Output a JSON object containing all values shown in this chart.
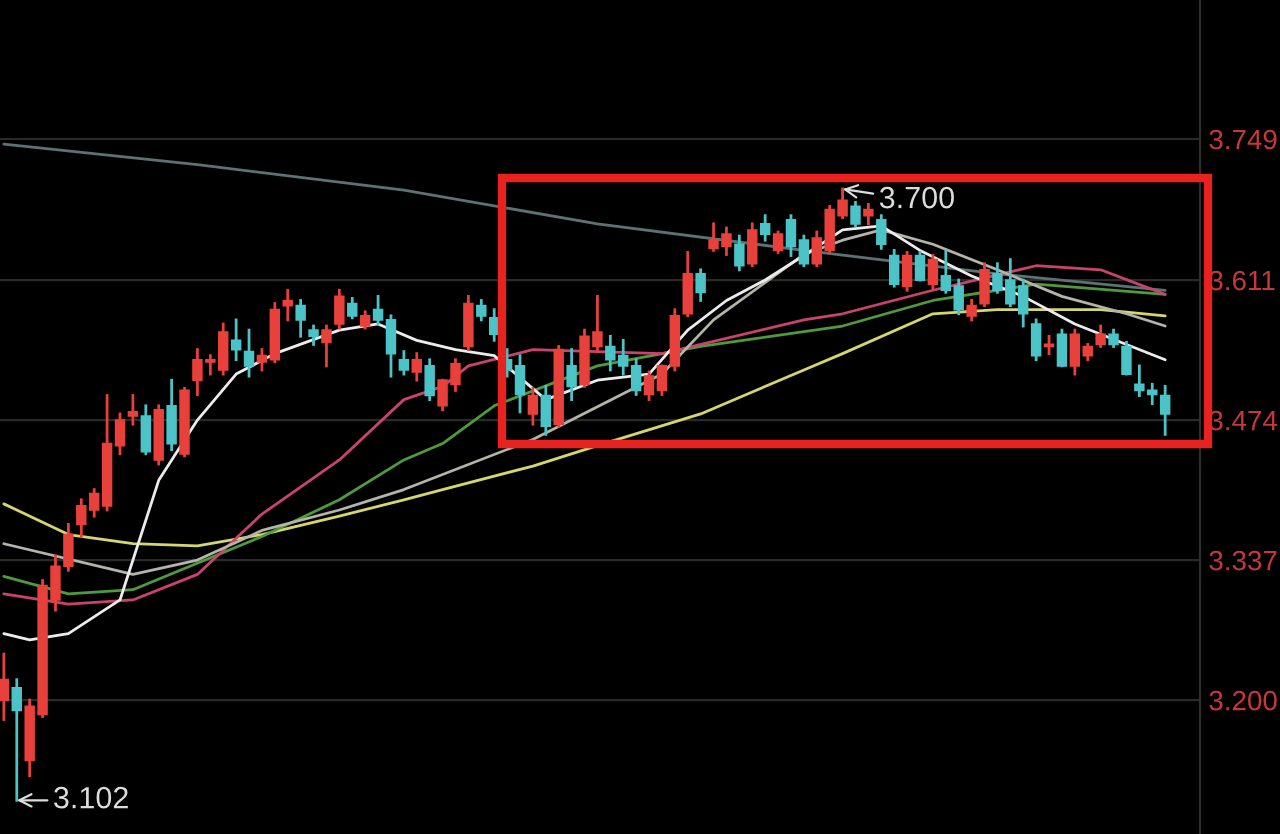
{
  "chart_data": {
    "type": "candlestick",
    "categories": [
      null,
      null,
      null,
      null,
      null,
      null,
      null,
      null,
      null,
      null,
      null,
      null,
      null,
      null,
      null,
      null,
      null,
      null,
      null,
      null,
      null,
      null,
      null,
      null,
      null,
      null,
      null,
      null,
      null,
      null,
      null,
      null,
      null,
      null,
      null,
      null,
      null,
      null,
      null,
      null,
      null,
      null,
      null,
      null,
      null,
      null,
      null,
      null,
      null,
      null,
      null,
      null,
      null,
      null,
      null,
      null,
      null,
      null,
      null,
      null,
      null,
      null,
      null,
      null,
      null,
      null,
      null,
      null,
      null,
      null,
      null,
      null,
      null,
      null,
      null,
      null,
      null,
      null,
      null,
      null,
      null,
      null,
      null,
      null,
      null,
      null,
      null,
      null,
      null,
      null,
      null
    ],
    "ohlc": [
      [
        3.2,
        3.245,
        3.181,
        3.22
      ],
      [
        3.212,
        3.22,
        3.102,
        3.19
      ],
      [
        3.141,
        3.2,
        3.126,
        3.194
      ],
      [
        3.186,
        3.317,
        3.184,
        3.312
      ],
      [
        3.298,
        3.341,
        3.288,
        3.331
      ],
      [
        3.331,
        3.372,
        3.327,
        3.362
      ],
      [
        3.372,
        3.396,
        3.36,
        3.39
      ],
      [
        3.386,
        3.406,
        3.38,
        3.402
      ],
      [
        3.39,
        3.498,
        3.386,
        3.451
      ],
      [
        3.449,
        3.48,
        3.441,
        3.474
      ],
      [
        3.478,
        3.498,
        3.47,
        3.482
      ],
      [
        3.478,
        3.488,
        3.441,
        3.443
      ],
      [
        3.435,
        3.488,
        3.431,
        3.484
      ],
      [
        3.488,
        3.513,
        3.445,
        3.451
      ],
      [
        3.441,
        3.505,
        3.439,
        3.503
      ],
      [
        3.513,
        3.543,
        3.499,
        3.533
      ],
      [
        3.531,
        3.537,
        3.519,
        3.533
      ],
      [
        3.523,
        3.568,
        3.519,
        3.56
      ],
      [
        3.552,
        3.572,
        3.533,
        3.543
      ],
      [
        3.541,
        3.562,
        3.517,
        3.527
      ],
      [
        3.531,
        3.543,
        3.523,
        3.537
      ],
      [
        3.533,
        3.588,
        3.531,
        3.582
      ],
      [
        3.586,
        3.601,
        3.572,
        3.591
      ],
      [
        3.586,
        3.591,
        3.556,
        3.572
      ],
      [
        3.562,
        3.566,
        3.548,
        3.556
      ],
      [
        3.55,
        3.566,
        3.527,
        3.562
      ],
      [
        3.568,
        3.601,
        3.564,
        3.595
      ],
      [
        3.588,
        3.593,
        3.574,
        3.576
      ],
      [
        3.566,
        3.58,
        3.564,
        3.576
      ],
      [
        3.582,
        3.595,
        3.568,
        3.572
      ],
      [
        3.572,
        3.576,
        3.517,
        3.539
      ],
      [
        3.533,
        3.541,
        3.519,
        3.523
      ],
      [
        3.521,
        3.539,
        3.513,
        3.533
      ],
      [
        3.527,
        3.533,
        3.494,
        3.498
      ],
      [
        3.488,
        3.513,
        3.484,
        3.513
      ],
      [
        3.509,
        3.533,
        3.503,
        3.529
      ],
      [
        3.546,
        3.595,
        3.543,
        3.588
      ],
      [
        3.586,
        3.591,
        3.572,
        3.576
      ],
      [
        3.574,
        3.582,
        3.552,
        3.558
      ],
      [
        3.533,
        3.543,
        3.517,
        3.523
      ],
      [
        3.527,
        3.537,
        3.482,
        3.499
      ],
      [
        3.48,
        3.505,
        3.47,
        3.498
      ],
      [
        3.498,
        3.507,
        3.46,
        3.468
      ],
      [
        3.47,
        3.546,
        3.468,
        3.543
      ],
      [
        3.527,
        3.543,
        3.494,
        3.507
      ],
      [
        3.509,
        3.562,
        3.507,
        3.556
      ],
      [
        3.546,
        3.595,
        3.543,
        3.56
      ],
      [
        3.546,
        3.556,
        3.523,
        3.533
      ],
      [
        3.537,
        3.552,
        3.519,
        3.527
      ],
      [
        3.527,
        3.533,
        3.499,
        3.503
      ],
      [
        3.499,
        3.521,
        3.494,
        3.517
      ],
      [
        3.503,
        3.527,
        3.499,
        3.527
      ],
      [
        3.527,
        3.582,
        3.523,
        3.576
      ],
      [
        3.578,
        3.638,
        3.576,
        3.617
      ],
      [
        3.617,
        3.621,
        3.591,
        3.599
      ],
      [
        3.642,
        3.666,
        3.64,
        3.65
      ],
      [
        3.644,
        3.662,
        3.636,
        3.656
      ],
      [
        3.646,
        3.654,
        3.621,
        3.625
      ],
      [
        3.627,
        3.666,
        3.625,
        3.66
      ],
      [
        3.666,
        3.674,
        3.65,
        3.656
      ],
      [
        3.64,
        3.658,
        3.638,
        3.656
      ],
      [
        3.67,
        3.674,
        3.635,
        3.644
      ],
      [
        3.65,
        3.654,
        3.625,
        3.627
      ],
      [
        3.627,
        3.658,
        3.625,
        3.652
      ],
      [
        3.64,
        3.683,
        3.638,
        3.68
      ],
      [
        3.674,
        3.7,
        3.672,
        3.689
      ],
      [
        3.683,
        3.687,
        3.664,
        3.666
      ],
      [
        3.674,
        3.685,
        3.666,
        3.68
      ],
      [
        3.67,
        3.674,
        3.642,
        3.646
      ],
      [
        3.635,
        3.64,
        3.605,
        3.607
      ],
      [
        3.605,
        3.638,
        3.601,
        3.635
      ],
      [
        3.635,
        3.638,
        3.611,
        3.611
      ],
      [
        3.607,
        3.635,
        3.603,
        3.631
      ],
      [
        3.615,
        3.64,
        3.599,
        3.601
      ],
      [
        3.605,
        3.611,
        3.578,
        3.582
      ],
      [
        3.576,
        3.591,
        3.572,
        3.586
      ],
      [
        3.588,
        3.627,
        3.586,
        3.621
      ],
      [
        3.617,
        3.627,
        3.599,
        3.601
      ],
      [
        3.611,
        3.631,
        3.586,
        3.588
      ],
      [
        3.605,
        3.611,
        3.566,
        3.578
      ],
      [
        3.568,
        3.572,
        3.533,
        3.537
      ],
      [
        3.546,
        3.556,
        3.539,
        3.548
      ],
      [
        3.558,
        3.562,
        3.527,
        3.527
      ],
      [
        3.527,
        3.562,
        3.519,
        3.558
      ],
      [
        3.537,
        3.548,
        3.533,
        3.546
      ],
      [
        3.548,
        3.566,
        3.546,
        3.558
      ],
      [
        3.558,
        3.562,
        3.546,
        3.548
      ],
      [
        3.546,
        3.55,
        3.519,
        3.519
      ],
      [
        3.509,
        3.527,
        3.498,
        3.503
      ],
      [
        3.503,
        3.509,
        3.49,
        3.499
      ],
      [
        3.498,
        3.507,
        3.46,
        3.48
      ]
    ],
    "colors": [
      "#e8413c",
      "#4cc3c6",
      "#e8413c",
      "#e8413c",
      "#e8413c",
      "#e8413c",
      "#e8413c",
      "#e8413c",
      "#e8413c",
      "#e8413c",
      "#e8413c",
      "#4cc3c6",
      "#e8413c",
      "#4cc3c6",
      "#e8413c",
      "#e8413c",
      "#e8413c",
      "#e8413c",
      "#4cc3c6",
      "#4cc3c6",
      "#e8413c",
      "#e8413c",
      "#e8413c",
      "#4cc3c6",
      "#4cc3c6",
      "#e8413c",
      "#e8413c",
      "#4cc3c6",
      "#e8413c",
      "#4cc3c6",
      "#4cc3c6",
      "#4cc3c6",
      "#e8413c",
      "#4cc3c6",
      "#e8413c",
      "#e8413c",
      "#e8413c",
      "#4cc3c6",
      "#4cc3c6",
      "#4cc3c6",
      "#4cc3c6",
      "#e8413c",
      "#4cc3c6",
      "#e8413c",
      "#4cc3c6",
      "#e8413c",
      "#e8413c",
      "#4cc3c6",
      "#4cc3c6",
      "#4cc3c6",
      "#e8413c",
      "#e8413c",
      "#e8413c",
      "#e8413c",
      "#4cc3c6",
      "#e8413c",
      "#e8413c",
      "#4cc3c6",
      "#e8413c",
      "#4cc3c6",
      "#e8413c",
      "#4cc3c6",
      "#4cc3c6",
      "#e8413c",
      "#e8413c",
      "#e8413c",
      "#4cc3c6",
      "#e8413c",
      "#4cc3c6",
      "#4cc3c6",
      "#e8413c",
      "#4cc3c6",
      "#e8413c",
      "#4cc3c6",
      "#4cc3c6",
      "#e8413c",
      "#e8413c",
      "#4cc3c6",
      "#4cc3c6",
      "#4cc3c6",
      "#4cc3c6",
      "#e8413c",
      "#4cc3c6",
      "#e8413c",
      "#e8413c",
      "#e8413c",
      "#4cc3c6",
      "#4cc3c6",
      "#4cc3c6",
      "#4cc3c6",
      "#4cc3c6"
    ],
    "series": [
      {
        "type": "line",
        "color": "#5c7274",
        "values": [
          3.744,
          null,
          null,
          null,
          null,
          null,
          null,
          null,
          null,
          null,
          null,
          null,
          null,
          null,
          null,
          3.724,
          null,
          null,
          null,
          null,
          null,
          null,
          null,
          null,
          null,
          null,
          null,
          null,
          null,
          null,
          null,
          3.699,
          null,
          null,
          null,
          null,
          null,
          null,
          null,
          null,
          null,
          null,
          null,
          null,
          null,
          null,
          3.666,
          null,
          null,
          null,
          null,
          null,
          null,
          null,
          null,
          null,
          null,
          null,
          null,
          null,
          null,
          null,
          3.64,
          null,
          null,
          null,
          null,
          null,
          null,
          null,
          null,
          null,
          null,
          null,
          null,
          null,
          null,
          3.617,
          null,
          null,
          null,
          null,
          null,
          null,
          null,
          null,
          null,
          null,
          null,
          null,
          3.601
        ]
      },
      {
        "type": "line",
        "color": "#d6d66e",
        "values": [
          3.392,
          null,
          null,
          null,
          null,
          3.362,
          null,
          null,
          null,
          null,
          3.353,
          null,
          null,
          null,
          null,
          3.351,
          null,
          null,
          null,
          null,
          3.362,
          null,
          null,
          null,
          null,
          null,
          3.38,
          null,
          null,
          null,
          null,
          3.396,
          null,
          null,
          3.406,
          null,
          null,
          null,
          null,
          null,
          null,
          3.429,
          null,
          null,
          null,
          null,
          3.449,
          null,
          null,
          null,
          null,
          null,
          null,
          null,
          3.48,
          null,
          null,
          null,
          null,
          null,
          null,
          null,
          3.523,
          null,
          null,
          3.539,
          null,
          null,
          null,
          null,
          null,
          null,
          3.578,
          null,
          null,
          null,
          null,
          3.582,
          null,
          null,
          null,
          null,
          null,
          null,
          null,
          3.582,
          null,
          null,
          null,
          null,
          3.576
        ]
      },
      {
        "type": "line",
        "color": "#4f9a3c",
        "values": [
          3.321,
          null,
          null,
          null,
          null,
          3.304,
          null,
          null,
          null,
          null,
          3.308,
          null,
          null,
          null,
          null,
          null,
          null,
          null,
          null,
          null,
          3.36,
          null,
          null,
          null,
          null,
          null,
          3.396,
          null,
          null,
          null,
          null,
          3.435,
          null,
          null,
          3.451,
          null,
          null,
          null,
          3.488,
          null,
          null,
          null,
          null,
          null,
          null,
          null,
          3.527,
          null,
          null,
          null,
          null,
          null,
          null,
          null,
          3.546,
          null,
          null,
          null,
          null,
          null,
          null,
          null,
          null,
          null,
          null,
          3.566,
          null,
          null,
          null,
          null,
          null,
          null,
          3.591,
          null,
          null,
          null,
          null,
          null,
          null,
          null,
          3.607,
          null,
          null,
          null,
          null,
          null,
          null,
          null,
          null,
          null,
          3.597
        ]
      },
      {
        "type": "line",
        "color": "#c8446c",
        "values": [
          3.304,
          null,
          null,
          null,
          null,
          3.294,
          null,
          null,
          null,
          null,
          3.298,
          null,
          null,
          null,
          null,
          3.323,
          null,
          null,
          null,
          null,
          3.382,
          null,
          null,
          null,
          null,
          null,
          3.435,
          null,
          null,
          null,
          null,
          3.494,
          null,
          null,
          3.507,
          null,
          3.527,
          null,
          null,
          null,
          null,
          3.543,
          null,
          null,
          null,
          null,
          null,
          null,
          null,
          null,
          null,
          3.539,
          null,
          null,
          null,
          null,
          null,
          null,
          null,
          null,
          null,
          null,
          3.572,
          null,
          null,
          3.578,
          null,
          null,
          null,
          null,
          null,
          null,
          3.601,
          null,
          null,
          null,
          null,
          null,
          null,
          null,
          3.625,
          null,
          null,
          null,
          null,
          3.621,
          null,
          null,
          null,
          null,
          3.597
        ]
      },
      {
        "type": "line",
        "color": "#b4b4aa",
        "values": [
          3.353,
          null,
          null,
          null,
          null,
          null,
          null,
          null,
          null,
          null,
          3.323,
          null,
          null,
          null,
          null,
          3.337,
          null,
          null,
          null,
          null,
          3.366,
          null,
          null,
          null,
          null,
          null,
          3.386,
          null,
          null,
          null,
          null,
          3.406,
          null,
          null,
          null,
          null,
          null,
          null,
          null,
          null,
          null,
          3.455,
          null,
          null,
          null,
          null,
          null,
          null,
          null,
          null,
          null,
          3.519,
          null,
          null,
          null,
          3.572,
          null,
          null,
          null,
          null,
          null,
          null,
          3.636,
          null,
          null,
          3.65,
          null,
          null,
          3.66,
          null,
          null,
          null,
          3.646,
          null,
          null,
          null,
          null,
          3.621,
          null,
          null,
          null,
          null,
          3.595,
          null,
          null,
          null,
          null,
          3.578,
          null,
          null,
          3.566
        ]
      },
      {
        "type": "line",
        "color": "#ececec",
        "values": [
          3.265,
          null,
          3.259,
          null,
          null,
          3.265,
          null,
          null,
          null,
          3.298,
          null,
          null,
          3.415,
          null,
          null,
          3.474,
          null,
          null,
          3.519,
          null,
          null,
          3.539,
          null,
          null,
          null,
          null,
          3.562,
          null,
          null,
          3.568,
          null,
          null,
          3.552,
          null,
          null,
          3.543,
          null,
          null,
          3.537,
          null,
          null,
          null,
          3.494,
          null,
          null,
          null,
          3.513,
          null,
          null,
          null,
          3.519,
          null,
          null,
          3.562,
          null,
          null,
          3.591,
          null,
          null,
          3.611,
          null,
          null,
          3.635,
          null,
          null,
          3.66,
          null,
          null,
          3.664,
          null,
          null,
          3.64,
          null,
          null,
          null,
          3.615,
          null,
          null,
          null,
          3.595,
          null,
          null,
          null,
          3.568,
          null,
          null,
          null,
          3.548,
          null,
          null,
          3.533
        ]
      }
    ],
    "annotations": [
      "3.102",
      "3.700"
    ],
    "ylim": [
      3.069,
      3.885
    ],
    "yticks": [
      {
        "value": 3.2,
        "label": "3.200"
      },
      3.337,
      3.474,
      3.611,
      3.749
    ],
    "grid": "y",
    "tick_labels": "y",
    "legend": false
  }
}
